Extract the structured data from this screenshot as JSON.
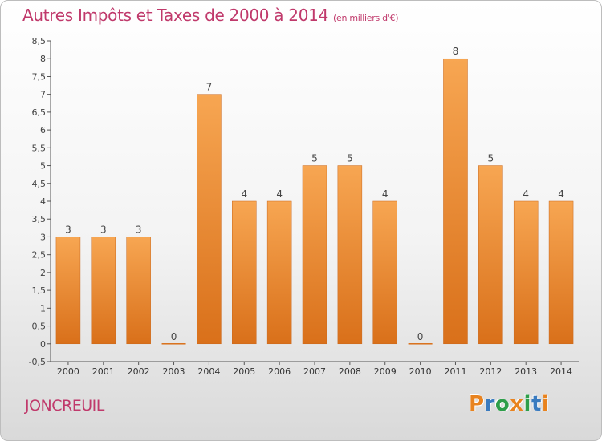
{
  "header": {
    "title": "Autres Impôts et Taxes de 2000 à 2014",
    "subtitle": "(en milliers d'€)"
  },
  "footer": {
    "commune": "JONCREUIL",
    "brand": "Proxiti"
  },
  "colors": {
    "bar_top": "#f7a652",
    "bar_bottom": "#d9701a",
    "title": "#c0396b",
    "brand_letters": [
      "#e8831f",
      "#3a7bbf",
      "#2e9e4a",
      "#e8831f",
      "#2e9e4a",
      "#3a7bbf",
      "#e8831f"
    ]
  },
  "chart_data": {
    "type": "bar",
    "title": "Autres Impôts et Taxes de 2000 à 2014",
    "categories": [
      "2000",
      "2001",
      "2002",
      "2003",
      "2004",
      "2005",
      "2006",
      "2007",
      "2008",
      "2009",
      "2010",
      "2011",
      "2012",
      "2013",
      "2014"
    ],
    "values": [
      3,
      3,
      3,
      0,
      7,
      4,
      4,
      5,
      5,
      4,
      0,
      8,
      5,
      4,
      4
    ],
    "data_labels": [
      "3",
      "3",
      "3",
      "0",
      "7",
      "4",
      "4",
      "5",
      "5",
      "4",
      "0",
      "8",
      "5",
      "4",
      "4"
    ],
    "xlabel": "",
    "ylabel": "",
    "ylim": [
      -0.5,
      8.5
    ],
    "yticks": [
      "-0,5",
      "0",
      "0,5",
      "1",
      "1,5",
      "2",
      "2,5",
      "3",
      "3,5",
      "4",
      "4,5",
      "5",
      "5,5",
      "6",
      "6,5",
      "7",
      "7,5",
      "8",
      "8,5"
    ],
    "grid": false,
    "legend": "none"
  }
}
